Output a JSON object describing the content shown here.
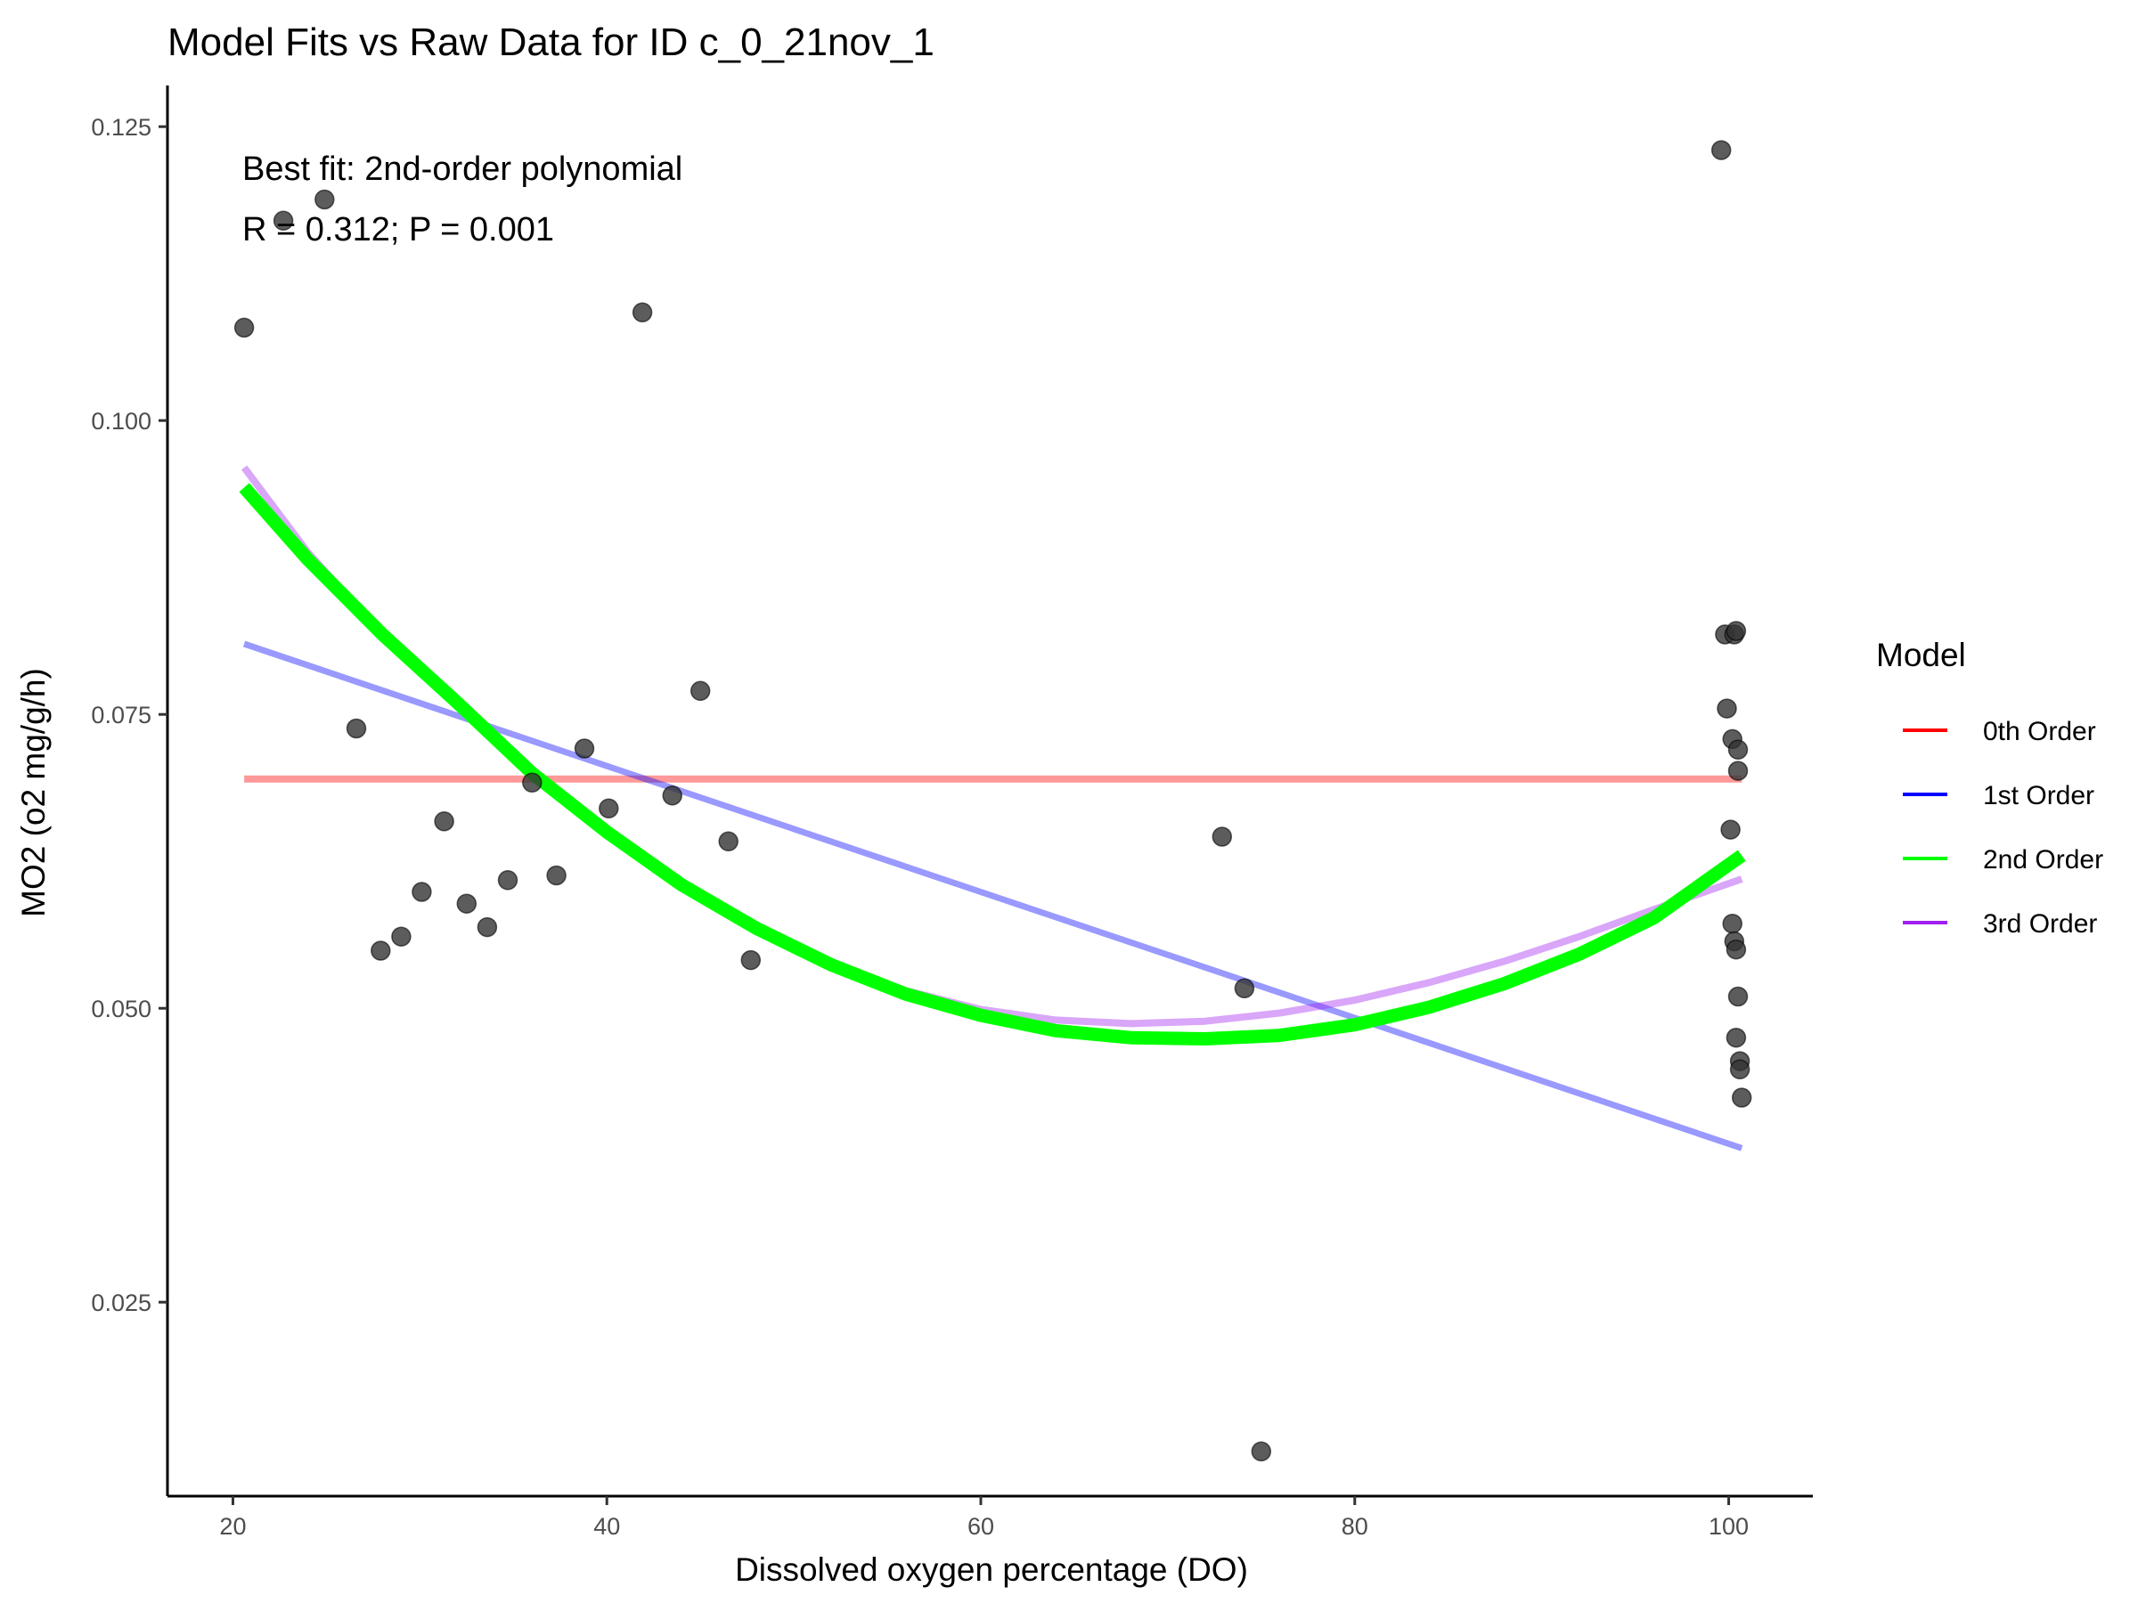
{
  "chart_data": {
    "type": "scatter",
    "title": "Model Fits vs Raw Data for ID c_0_21nov_1",
    "xlabel": "Dissolved oxygen percentage (DO)",
    "ylabel": "MO2 (o2 mg/g/h)",
    "xlim": [
      16.5,
      104.5
    ],
    "ylim": [
      0.0085,
      0.1285
    ],
    "xticks": [
      20,
      40,
      60,
      80,
      100
    ],
    "xtick_labels": [
      "20",
      "40",
      "60",
      "80",
      "100"
    ],
    "yticks": [
      0.025,
      0.05,
      0.075,
      0.1,
      0.125
    ],
    "ytick_labels": [
      "0.025",
      "0.050",
      "0.075",
      "0.100",
      "0.125"
    ],
    "grid": false,
    "annotations": [
      "Best fit: 2nd-order polynomial",
      "R = 0.312; P = 0.001"
    ],
    "points": {
      "x": [
        20.6,
        22.7,
        24.9,
        26.6,
        27.9,
        29.0,
        30.1,
        31.3,
        32.5,
        33.6,
        34.7,
        36.0,
        37.3,
        38.8,
        40.1,
        41.9,
        43.5,
        45.0,
        46.5,
        47.7,
        72.9,
        74.1,
        75.0,
        99.6,
        99.8,
        99.9,
        100.1,
        100.2,
        100.2,
        100.3,
        100.3,
        100.4,
        100.4,
        100.4,
        100.5,
        100.5,
        100.5,
        100.6,
        100.6,
        100.7
      ],
      "y": [
        0.1079,
        0.117,
        0.1188,
        0.0738,
        0.0549,
        0.0561,
        0.0599,
        0.0659,
        0.0589,
        0.0569,
        0.0609,
        0.0692,
        0.0613,
        0.0721,
        0.067,
        0.1092,
        0.0681,
        0.077,
        0.0642,
        0.0541,
        0.0646,
        0.0517,
        0.0123,
        0.123,
        0.0818,
        0.0755,
        0.0652,
        0.0729,
        0.0572,
        0.0818,
        0.0557,
        0.0821,
        0.055,
        0.0475,
        0.072,
        0.0702,
        0.051,
        0.0455,
        0.0448,
        0.0424
      ],
      "color": "#333333"
    },
    "series": [
      {
        "name": "0th Order",
        "color": "#FF0000",
        "x": [
          20.6,
          100.7
        ],
        "y": [
          0.0695,
          0.0695
        ]
      },
      {
        "name": "1st Order",
        "color": "#0000FF",
        "x": [
          20.6,
          100.7
        ],
        "y": [
          0.081,
          0.0381
        ]
      },
      {
        "name": "2nd Order",
        "color": "#00FF00",
        "x": [
          20.6,
          24,
          28,
          32,
          36,
          40,
          44,
          48,
          52,
          56,
          60,
          64,
          68,
          72,
          76,
          80,
          84,
          88,
          92,
          96,
          100.7
        ],
        "y": [
          0.0943,
          0.0882,
          0.0818,
          0.076,
          0.07,
          0.065,
          0.0605,
          0.0568,
          0.0537,
          0.0512,
          0.0494,
          0.0481,
          0.0475,
          0.0474,
          0.0477,
          0.0486,
          0.0501,
          0.0521,
          0.0546,
          0.0577,
          0.063
        ]
      },
      {
        "name": "3rd Order",
        "color": "#A020F0",
        "x": [
          20.6,
          24,
          28,
          32,
          36,
          40,
          44,
          48,
          52,
          56,
          60,
          64,
          68,
          72,
          76,
          80,
          84,
          88,
          92,
          96,
          100.7
        ],
        "y": [
          0.096,
          0.0888,
          0.0818,
          0.0757,
          0.0698,
          0.0648,
          0.0604,
          0.0567,
          0.0538,
          0.0515,
          0.0499,
          0.049,
          0.0487,
          0.0489,
          0.0496,
          0.0507,
          0.0522,
          0.054,
          0.0561,
          0.0584,
          0.061
        ]
      }
    ],
    "legend": {
      "title": "Model",
      "position": "right",
      "entries": [
        "0th Order",
        "1st Order",
        "2nd Order",
        "3rd Order"
      ]
    }
  }
}
